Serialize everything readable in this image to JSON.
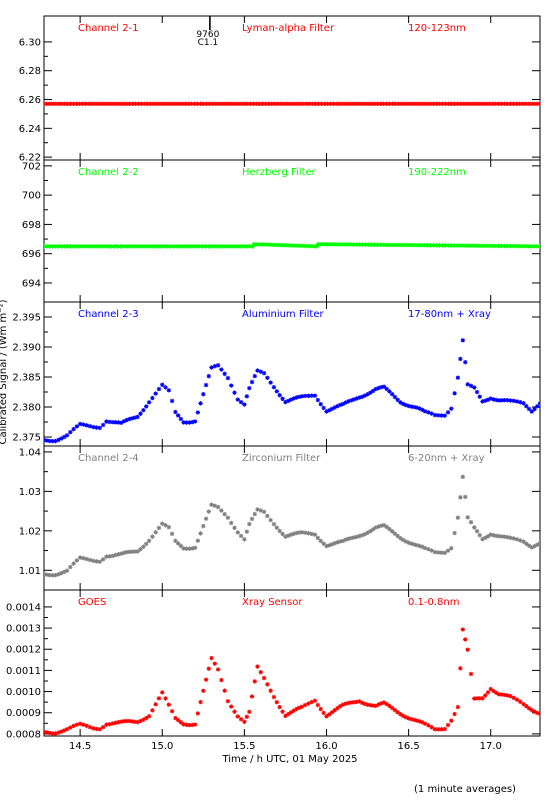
{
  "figure": {
    "xlabel": "Time / h UTC, 01 May 2025",
    "ylabel": "Calibrated Signal / (Wm m⁻²)",
    "note": "(1 minute averages)",
    "xlim": [
      14.28,
      17.3
    ],
    "xticks": [
      14.5,
      15.0,
      15.5,
      16.0,
      16.5,
      17.0
    ],
    "xtick_labels": [
      "14.5",
      "15.0",
      "15.5",
      "16.0",
      "16.5",
      "17.0"
    ],
    "flare_marker": {
      "x": 15.29,
      "label_top": "9760",
      "label_bottom": "C1.1"
    }
  },
  "chart_data": [
    {
      "type": "scatter",
      "channel": "Channel 2-1",
      "filter": "Lyman-alpha Filter",
      "band": "120-123nm",
      "color": "#ff0000",
      "marker": "*",
      "ylim": [
        6.218,
        6.318
      ],
      "yticks": [
        6.22,
        6.24,
        6.26,
        6.28,
        6.3
      ],
      "ytick_labels": [
        "6.22",
        "6.24",
        "6.26",
        "6.28",
        "6.30"
      ],
      "series": [
        {
          "x": [
            14.28,
            17.3
          ],
          "y": [
            6.257,
            6.257
          ]
        }
      ]
    },
    {
      "type": "scatter",
      "channel": "Channel 2-2",
      "filter": "Herzberg Filter",
      "band": "190-222nm",
      "color": "#00ff00",
      "marker": "*",
      "ylim": [
        692.7,
        702.4
      ],
      "yticks": [
        694,
        696,
        698,
        700,
        702
      ],
      "ytick_labels": [
        "694",
        "696",
        "698",
        "700",
        "702"
      ],
      "series": [
        {
          "x": [
            14.28,
            15.55,
            15.56,
            15.94,
            15.95,
            17.3
          ],
          "y": [
            696.5,
            696.5,
            696.65,
            696.5,
            696.65,
            696.5
          ]
        }
      ]
    },
    {
      "type": "scatter",
      "channel": "Channel 2-3",
      "filter": "Aluminium Filter",
      "band": "17-80nm + Xray",
      "color": "#0000ff",
      "marker": "*",
      "ylim": [
        2.3735,
        2.3975
      ],
      "yticks": [
        2.375,
        2.38,
        2.385,
        2.39,
        2.395
      ],
      "ytick_labels": [
        "2.375",
        "2.380",
        "2.385",
        "2.390",
        "2.395"
      ],
      "series": [
        {
          "x": [
            14.28,
            14.35,
            14.42,
            14.5,
            14.58,
            14.62,
            14.66,
            14.7,
            14.75,
            14.85,
            14.92,
            15.0,
            15.04,
            15.08,
            15.13,
            15.2,
            15.25,
            15.3,
            15.34,
            15.4,
            15.46,
            15.5,
            15.53,
            15.58,
            15.62,
            15.68,
            15.75,
            15.85,
            15.93,
            16.0,
            16.1,
            16.2,
            16.3,
            16.35,
            16.45,
            16.55,
            16.6,
            16.66,
            16.72,
            16.76,
            16.8,
            16.83,
            16.86,
            16.9,
            16.95,
            17.0,
            17.05,
            17.12,
            17.2,
            17.25,
            17.3
          ],
          "y": [
            2.3745,
            2.3746,
            2.3752,
            2.3769,
            2.3768,
            2.3768,
            2.3778,
            2.3775,
            2.3771,
            2.3785,
            2.381,
            2.3835,
            2.3825,
            2.379,
            2.3776,
            2.3778,
            2.382,
            2.3863,
            2.3868,
            2.385,
            2.3815,
            2.3805,
            2.383,
            2.3858,
            2.3855,
            2.3835,
            2.381,
            2.3815,
            2.382,
            2.3795,
            2.3802,
            2.3818,
            2.3829,
            2.3831,
            2.381,
            2.3798,
            2.379,
            2.3786,
            2.3788,
            2.38,
            2.385,
            2.391,
            2.3835,
            2.383,
            2.381,
            2.3817,
            2.3812,
            2.3808,
            2.3806,
            2.3795,
            2.3808
          ]
        }
      ]
    },
    {
      "type": "scatter",
      "channel": "Channel 2-4",
      "filter": "Zirconium Filter",
      "band": "6-20nm + Xray",
      "color": "#808080",
      "marker": "*",
      "ylim": [
        1.005,
        1.0415
      ],
      "yticks": [
        1.01,
        1.02,
        1.03,
        1.04
      ],
      "ytick_labels": [
        "1.01",
        "1.02",
        "1.03",
        "1.04"
      ],
      "series": [
        {
          "x": [
            14.28,
            14.35,
            14.42,
            14.5,
            14.58,
            14.62,
            14.66,
            14.7,
            14.75,
            14.85,
            14.92,
            15.0,
            15.04,
            15.08,
            15.13,
            15.2,
            15.25,
            15.3,
            15.34,
            15.4,
            15.46,
            15.5,
            15.53,
            15.58,
            15.62,
            15.68,
            15.75,
            15.85,
            15.93,
            16.0,
            16.1,
            16.2,
            16.3,
            16.35,
            16.45,
            16.55,
            16.6,
            16.66,
            16.72,
            16.76,
            16.8,
            16.83,
            16.86,
            16.9,
            16.95,
            17.0,
            17.05,
            17.12,
            17.2,
            17.25,
            17.3
          ],
          "y": [
            1.009,
            1.0092,
            1.0098,
            1.0128,
            1.0126,
            1.0126,
            1.0138,
            1.0137,
            1.0138,
            1.015,
            1.0178,
            1.0215,
            1.0205,
            1.0172,
            1.0158,
            1.016,
            1.021,
            1.0262,
            1.0258,
            1.0236,
            1.02,
            1.018,
            1.0215,
            1.025,
            1.0246,
            1.022,
            1.0188,
            1.0192,
            1.0192,
            1.0165,
            1.017,
            1.019,
            1.0207,
            1.021,
            1.0185,
            1.0162,
            1.0152,
            1.0145,
            1.0148,
            1.016,
            1.0235,
            1.0335,
            1.023,
            1.0205,
            1.018,
            1.0195,
            1.0188,
            1.0178,
            1.0172,
            1.0162,
            1.0172
          ]
        }
      ]
    },
    {
      "type": "scatter",
      "channel": "GOES",
      "filter": "Xray Sensor",
      "band": "0.1-0.8nm",
      "color": "#ff0000",
      "marker": "*",
      "ylim": [
        0.00079,
        0.00148
      ],
      "yticks": [
        0.0008,
        0.0009,
        0.001,
        0.0011,
        0.0012,
        0.0013,
        0.0014
      ],
      "ytick_labels": [
        "0.0008",
        "0.0009",
        "0.0010",
        "0.0011",
        "0.0012",
        "0.0013",
        "0.0014"
      ],
      "series": [
        {
          "x": [
            14.28,
            14.35,
            14.42,
            14.5,
            14.58,
            14.62,
            14.66,
            14.7,
            14.75,
            14.85,
            14.92,
            15.0,
            15.04,
            15.08,
            15.13,
            15.2,
            15.25,
            15.3,
            15.34,
            15.4,
            15.46,
            15.5,
            15.53,
            15.58,
            15.62,
            15.68,
            15.75,
            15.85,
            15.93,
            16.0,
            16.1,
            16.2,
            16.3,
            16.35,
            16.45,
            16.55,
            16.6,
            16.66,
            16.72,
            16.76,
            16.8,
            16.83,
            16.86,
            16.9,
            16.95,
            17.0,
            17.05,
            17.12,
            17.2,
            17.25,
            17.3
          ],
          "y": [
            0.00081,
            0.00081,
            0.00082,
            0.00084,
            0.00083,
            0.00083,
            0.00085,
            0.00085,
            0.00085,
            0.00086,
            0.00089,
            0.00099,
            0.00093,
            0.00087,
            0.00085,
            0.00085,
            0.001,
            0.00115,
            0.0011,
            0.00096,
            0.00089,
            0.00086,
            0.0009,
            0.00111,
            0.00106,
            0.00098,
            0.00089,
            0.00092,
            0.00096,
            0.00089,
            0.00093,
            0.00096,
            0.00093,
            0.00094,
            0.0009,
            0.00086,
            0.00084,
            0.00082,
            0.00083,
            0.00087,
            0.00093,
            0.00129,
            0.00119,
            0.00096,
            0.00097,
            0.00102,
            0.00099,
            0.00097,
            0.00094,
            0.00092,
            0.0009
          ]
        }
      ]
    }
  ]
}
